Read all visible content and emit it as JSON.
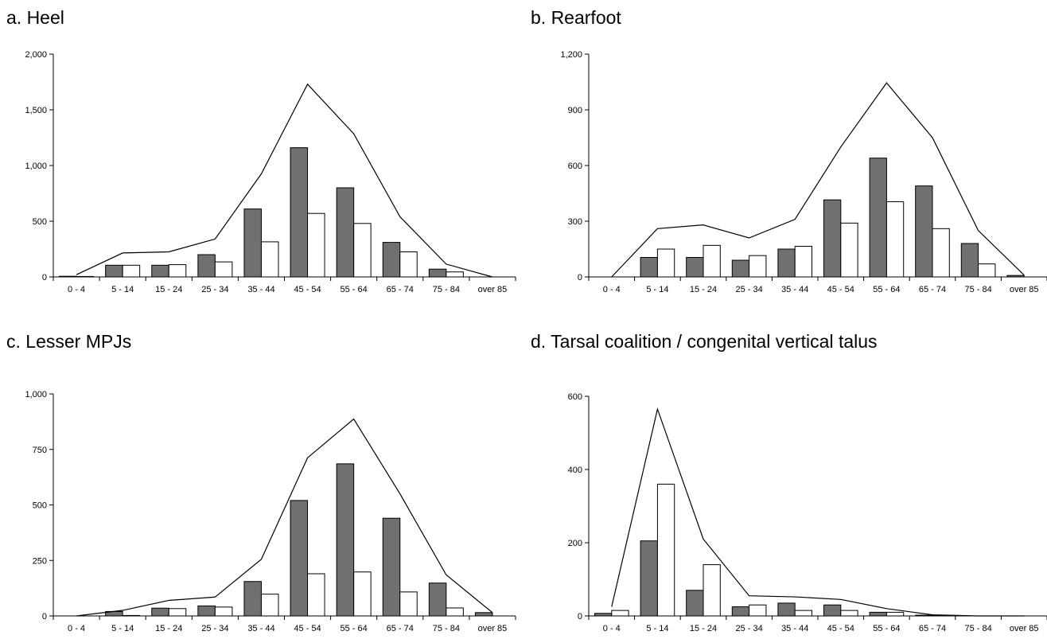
{
  "colors": {
    "male_bar": "#707070",
    "female_bar": "#ffffff",
    "outline": "#000000"
  },
  "chart_data": [
    {
      "type": "bar",
      "title": "a. Heel",
      "categories": [
        "0 - 4",
        "5 - 14",
        "15 - 24",
        "25 - 34",
        "35 - 44",
        "45 - 54",
        "55 - 64",
        "65 - 74",
        "75 - 84",
        "over 85"
      ],
      "ylim": [
        0,
        2000
      ],
      "yticks": [
        0,
        500,
        1000,
        1500,
        2000
      ],
      "ytick_labels": [
        "0",
        "500",
        "1,000",
        "1,500",
        "2,000"
      ],
      "series": [
        {
          "kind": "bar",
          "values": [
            6,
            105,
            105,
            200,
            610,
            1160,
            800,
            310,
            70,
            0
          ]
        },
        {
          "kind": "bar",
          "values": [
            4,
            105,
            110,
            135,
            315,
            570,
            480,
            225,
            45,
            0
          ]
        },
        {
          "kind": "line",
          "values": [
            20,
            215,
            225,
            340,
            925,
            1730,
            1285,
            540,
            115,
            0
          ]
        }
      ]
    },
    {
      "type": "bar",
      "title": "b. Rearfoot",
      "categories": [
        "0 - 4",
        "5 - 14",
        "15 - 24",
        "25 - 34",
        "35 - 44",
        "45 - 54",
        "55 - 64",
        "65 - 74",
        "75 - 84",
        "over 85"
      ],
      "ylim": [
        0,
        1200
      ],
      "yticks": [
        0,
        300,
        600,
        900,
        1200
      ],
      "ytick_labels": [
        "0",
        "300",
        "600",
        "900",
        "1,200"
      ],
      "series": [
        {
          "kind": "bar",
          "values": [
            0,
            105,
            105,
            90,
            150,
            415,
            640,
            490,
            180,
            8
          ]
        },
        {
          "kind": "bar",
          "values": [
            0,
            150,
            170,
            115,
            165,
            290,
            405,
            260,
            70,
            0
          ]
        },
        {
          "kind": "line",
          "values": [
            0,
            260,
            280,
            210,
            310,
            700,
            1045,
            750,
            250,
            10
          ]
        }
      ]
    },
    {
      "type": "bar",
      "title": "c. Lesser MPJs",
      "categories": [
        "0 - 4",
        "5 - 14",
        "15 - 24",
        "25 - 34",
        "35 - 44",
        "45 - 54",
        "55 - 64",
        "65 - 74",
        "75 - 84",
        "over 85"
      ],
      "ylim": [
        0,
        1000
      ],
      "yticks": [
        0,
        250,
        500,
        750,
        1000
      ],
      "ytick_labels": [
        "0",
        "250",
        "500",
        "750",
        "1,000"
      ],
      "series": [
        {
          "kind": "bar",
          "values": [
            0,
            20,
            35,
            45,
            155,
            520,
            685,
            440,
            148,
            15
          ]
        },
        {
          "kind": "bar",
          "values": [
            0,
            2,
            33,
            40,
            98,
            190,
            198,
            108,
            36,
            0
          ]
        },
        {
          "kind": "line",
          "values": [
            0,
            25,
            70,
            85,
            255,
            712,
            887,
            550,
            185,
            15
          ]
        }
      ]
    },
    {
      "type": "bar",
      "title": "d. Tarsal coalition / congenital vertical talus",
      "categories": [
        "0 - 4",
        "5 - 14",
        "15 - 24",
        "25 - 34",
        "35 - 44",
        "45 - 54",
        "55 - 64",
        "65 - 74",
        "75 - 84",
        "over 85"
      ],
      "ylim": [
        0,
        600
      ],
      "yticks": [
        0,
        200,
        400,
        600
      ],
      "ytick_labels": [
        "0",
        "200",
        "400",
        "600"
      ],
      "series": [
        {
          "kind": "bar",
          "values": [
            7,
            205,
            70,
            25,
            35,
            30,
            10,
            2,
            0,
            0
          ]
        },
        {
          "kind": "bar",
          "values": [
            15,
            360,
            140,
            30,
            15,
            15,
            10,
            2,
            0,
            0
          ]
        },
        {
          "kind": "line",
          "values": [
            25,
            565,
            210,
            55,
            52,
            45,
            20,
            3,
            0,
            0
          ]
        }
      ]
    }
  ]
}
